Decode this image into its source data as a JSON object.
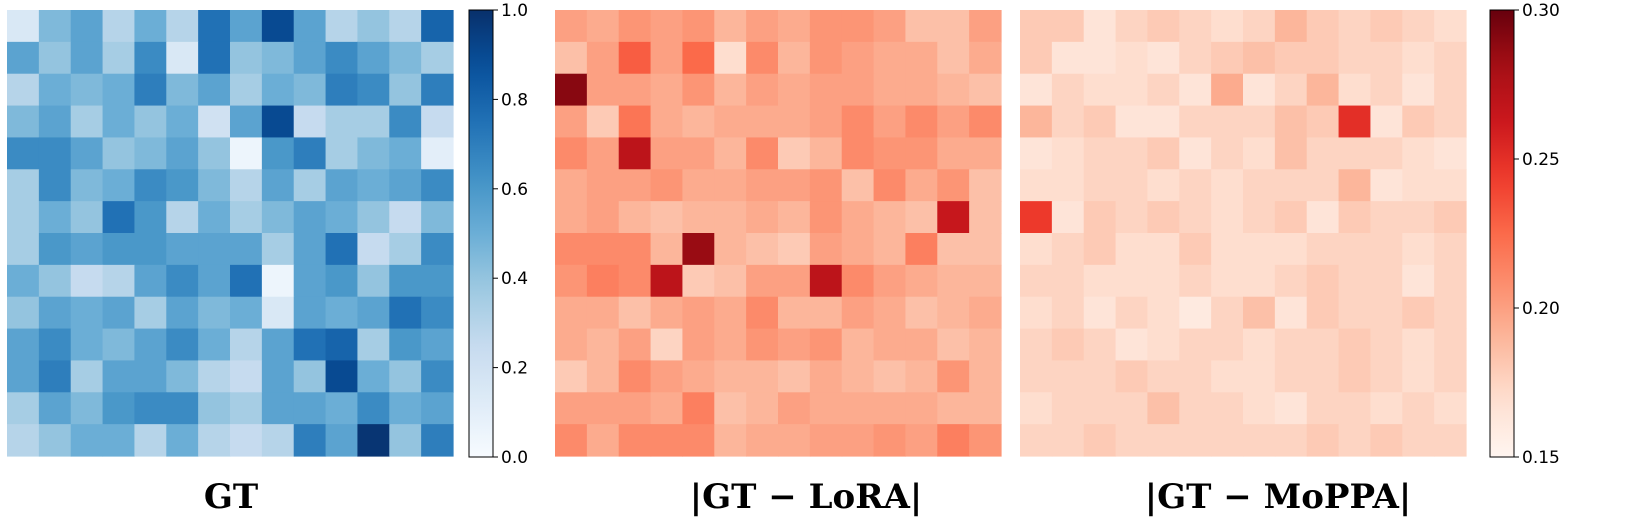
{
  "chart_data": [
    {
      "type": "heatmap",
      "title": "GT",
      "colormap": "Blues",
      "vmin": 0.0,
      "vmax": 1.0,
      "colorbar_ticks": [
        "0.0",
        "0.2",
        "0.4",
        "0.6",
        "0.8",
        "1.0"
      ],
      "colorbar_tick_values": [
        0.0,
        0.2,
        0.4,
        0.6,
        0.8,
        1.0
      ],
      "grid": false,
      "values": [
        [
          0.15,
          0.45,
          0.55,
          0.3,
          0.5,
          0.3,
          0.75,
          0.55,
          0.9,
          0.55,
          0.3,
          0.4,
          0.3,
          0.8
        ],
        [
          0.55,
          0.4,
          0.55,
          0.35,
          0.65,
          0.15,
          0.75,
          0.4,
          0.45,
          0.55,
          0.65,
          0.55,
          0.45,
          0.35
        ],
        [
          0.3,
          0.5,
          0.45,
          0.5,
          0.7,
          0.45,
          0.55,
          0.35,
          0.5,
          0.45,
          0.7,
          0.65,
          0.4,
          0.7
        ],
        [
          0.45,
          0.55,
          0.35,
          0.5,
          0.4,
          0.5,
          0.2,
          0.55,
          0.9,
          0.25,
          0.35,
          0.35,
          0.65,
          0.25
        ],
        [
          0.65,
          0.65,
          0.55,
          0.4,
          0.45,
          0.55,
          0.4,
          0.05,
          0.6,
          0.7,
          0.35,
          0.45,
          0.5,
          0.1
        ],
        [
          0.35,
          0.65,
          0.45,
          0.5,
          0.65,
          0.6,
          0.45,
          0.3,
          0.55,
          0.35,
          0.55,
          0.5,
          0.55,
          0.65
        ],
        [
          0.35,
          0.5,
          0.4,
          0.75,
          0.6,
          0.3,
          0.5,
          0.35,
          0.45,
          0.55,
          0.5,
          0.4,
          0.25,
          0.45
        ],
        [
          0.35,
          0.6,
          0.55,
          0.6,
          0.6,
          0.55,
          0.55,
          0.55,
          0.35,
          0.55,
          0.75,
          0.25,
          0.35,
          0.65
        ],
        [
          0.5,
          0.4,
          0.25,
          0.3,
          0.55,
          0.65,
          0.55,
          0.75,
          0.05,
          0.55,
          0.6,
          0.4,
          0.6,
          0.6
        ],
        [
          0.4,
          0.55,
          0.5,
          0.55,
          0.35,
          0.55,
          0.45,
          0.5,
          0.15,
          0.55,
          0.5,
          0.55,
          0.75,
          0.65
        ],
        [
          0.55,
          0.65,
          0.5,
          0.45,
          0.55,
          0.65,
          0.5,
          0.3,
          0.55,
          0.75,
          0.8,
          0.35,
          0.6,
          0.55
        ],
        [
          0.55,
          0.7,
          0.35,
          0.55,
          0.55,
          0.45,
          0.3,
          0.25,
          0.55,
          0.4,
          0.9,
          0.5,
          0.4,
          0.65
        ],
        [
          0.35,
          0.55,
          0.45,
          0.6,
          0.65,
          0.65,
          0.4,
          0.35,
          0.55,
          0.55,
          0.5,
          0.65,
          0.5,
          0.55
        ],
        [
          0.3,
          0.4,
          0.5,
          0.5,
          0.3,
          0.5,
          0.3,
          0.25,
          0.3,
          0.7,
          0.55,
          0.98,
          0.4,
          0.7
        ]
      ]
    },
    {
      "type": "heatmap",
      "title": "|GT − LoRA|",
      "colormap": "Reds",
      "vmin": 0.15,
      "vmax": 0.3,
      "grid": false,
      "values": [
        [
          0.2,
          0.195,
          0.205,
          0.2,
          0.205,
          0.19,
          0.2,
          0.195,
          0.205,
          0.205,
          0.2,
          0.185,
          0.185,
          0.2
        ],
        [
          0.185,
          0.2,
          0.23,
          0.2,
          0.225,
          0.17,
          0.21,
          0.19,
          0.205,
          0.2,
          0.195,
          0.195,
          0.185,
          0.195
        ],
        [
          0.29,
          0.2,
          0.2,
          0.195,
          0.205,
          0.19,
          0.2,
          0.195,
          0.2,
          0.2,
          0.195,
          0.195,
          0.19,
          0.185
        ],
        [
          0.2,
          0.18,
          0.22,
          0.195,
          0.19,
          0.195,
          0.195,
          0.195,
          0.2,
          0.21,
          0.2,
          0.21,
          0.2,
          0.21
        ],
        [
          0.21,
          0.2,
          0.27,
          0.2,
          0.2,
          0.19,
          0.21,
          0.18,
          0.19,
          0.21,
          0.205,
          0.205,
          0.195,
          0.195
        ],
        [
          0.195,
          0.2,
          0.2,
          0.205,
          0.195,
          0.195,
          0.2,
          0.2,
          0.205,
          0.185,
          0.21,
          0.195,
          0.205,
          0.185
        ],
        [
          0.195,
          0.2,
          0.19,
          0.185,
          0.19,
          0.19,
          0.195,
          0.19,
          0.205,
          0.195,
          0.19,
          0.185,
          0.265,
          0.185
        ],
        [
          0.21,
          0.21,
          0.21,
          0.19,
          0.285,
          0.19,
          0.185,
          0.18,
          0.2,
          0.195,
          0.19,
          0.215,
          0.185,
          0.185
        ],
        [
          0.205,
          0.215,
          0.21,
          0.27,
          0.18,
          0.185,
          0.2,
          0.2,
          0.27,
          0.21,
          0.2,
          0.195,
          0.19,
          0.19
        ],
        [
          0.195,
          0.195,
          0.185,
          0.195,
          0.2,
          0.195,
          0.21,
          0.19,
          0.19,
          0.2,
          0.195,
          0.185,
          0.19,
          0.195
        ],
        [
          0.195,
          0.19,
          0.2,
          0.175,
          0.2,
          0.195,
          0.205,
          0.2,
          0.205,
          0.19,
          0.195,
          0.195,
          0.185,
          0.19
        ],
        [
          0.18,
          0.19,
          0.21,
          0.2,
          0.195,
          0.19,
          0.19,
          0.185,
          0.195,
          0.19,
          0.185,
          0.19,
          0.205,
          0.19
        ],
        [
          0.2,
          0.2,
          0.2,
          0.195,
          0.215,
          0.185,
          0.19,
          0.2,
          0.195,
          0.195,
          0.195,
          0.195,
          0.19,
          0.19
        ],
        [
          0.21,
          0.195,
          0.21,
          0.21,
          0.21,
          0.19,
          0.195,
          0.195,
          0.2,
          0.2,
          0.205,
          0.2,
          0.215,
          0.205
        ]
      ]
    },
    {
      "type": "heatmap",
      "title": "|GT − MoPPA|",
      "colormap": "Reds",
      "vmin": 0.15,
      "vmax": 0.3,
      "colorbar_ticks": [
        "0.15",
        "0.20",
        "0.25",
        "0.30"
      ],
      "colorbar_tick_values": [
        0.15,
        0.2,
        0.25,
        0.3
      ],
      "grid": false,
      "values": [
        [
          0.18,
          0.18,
          0.165,
          0.175,
          0.18,
          0.175,
          0.17,
          0.175,
          0.19,
          0.18,
          0.175,
          0.18,
          0.175,
          0.17
        ],
        [
          0.18,
          0.165,
          0.165,
          0.17,
          0.165,
          0.175,
          0.18,
          0.185,
          0.18,
          0.18,
          0.175,
          0.175,
          0.17,
          0.175
        ],
        [
          0.165,
          0.175,
          0.17,
          0.17,
          0.175,
          0.165,
          0.195,
          0.165,
          0.175,
          0.19,
          0.17,
          0.175,
          0.165,
          0.175
        ],
        [
          0.19,
          0.175,
          0.18,
          0.165,
          0.165,
          0.175,
          0.175,
          0.175,
          0.185,
          0.18,
          0.25,
          0.165,
          0.18,
          0.175
        ],
        [
          0.165,
          0.17,
          0.175,
          0.175,
          0.18,
          0.165,
          0.175,
          0.17,
          0.185,
          0.175,
          0.175,
          0.175,
          0.17,
          0.165
        ],
        [
          0.17,
          0.17,
          0.175,
          0.175,
          0.17,
          0.175,
          0.17,
          0.175,
          0.175,
          0.175,
          0.19,
          0.165,
          0.17,
          0.17
        ],
        [
          0.245,
          0.165,
          0.18,
          0.175,
          0.18,
          0.175,
          0.17,
          0.175,
          0.18,
          0.165,
          0.18,
          0.175,
          0.175,
          0.18
        ],
        [
          0.17,
          0.175,
          0.18,
          0.17,
          0.17,
          0.18,
          0.17,
          0.17,
          0.17,
          0.175,
          0.175,
          0.175,
          0.17,
          0.175
        ],
        [
          0.175,
          0.175,
          0.17,
          0.17,
          0.17,
          0.175,
          0.17,
          0.17,
          0.175,
          0.18,
          0.175,
          0.175,
          0.165,
          0.175
        ],
        [
          0.17,
          0.175,
          0.165,
          0.175,
          0.17,
          0.16,
          0.175,
          0.185,
          0.165,
          0.18,
          0.175,
          0.175,
          0.18,
          0.175
        ],
        [
          0.175,
          0.18,
          0.175,
          0.165,
          0.17,
          0.175,
          0.175,
          0.17,
          0.175,
          0.175,
          0.18,
          0.175,
          0.17,
          0.175
        ],
        [
          0.175,
          0.175,
          0.175,
          0.18,
          0.175,
          0.175,
          0.17,
          0.17,
          0.175,
          0.175,
          0.18,
          0.175,
          0.17,
          0.175
        ],
        [
          0.17,
          0.175,
          0.175,
          0.175,
          0.185,
          0.175,
          0.175,
          0.17,
          0.165,
          0.175,
          0.175,
          0.17,
          0.175,
          0.17
        ],
        [
          0.175,
          0.175,
          0.18,
          0.175,
          0.175,
          0.175,
          0.175,
          0.175,
          0.175,
          0.18,
          0.175,
          0.18,
          0.175,
          0.175
        ]
      ]
    }
  ]
}
